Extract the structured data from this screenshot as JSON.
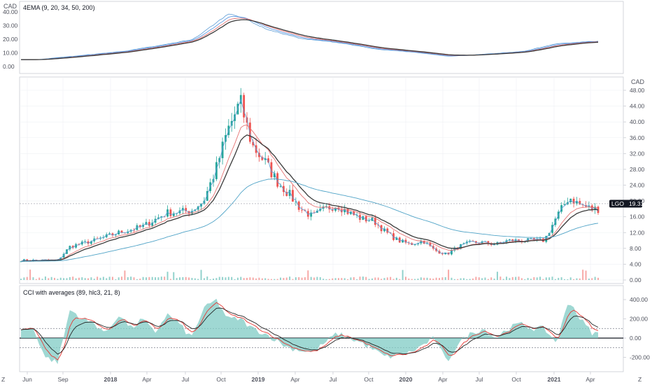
{
  "colors": {
    "up": "#26a69a",
    "down": "#ef5350",
    "ema9": "#5b9bd5",
    "ema20": "#4a90e2",
    "ema34": "#e57373",
    "ema50": "#3a3a3a",
    "ema200": "#4fa3c7",
    "cci_fill": "#7fcbc4",
    "cci_avg1": "#e53935",
    "cci_avg2": "#222222",
    "grid": "#eef0f3",
    "axis": "#c9ccd3",
    "badge_bg": "#131722",
    "badge_fg": "#ffffff"
  },
  "header": {
    "corner_left": "Z",
    "corner_right": "Z"
  },
  "panes": {
    "top": {
      "indicator_label": "4EMA (9, 20, 34, 50, 200)",
      "currency": "CAD",
      "ticks": [
        "40.00",
        "30.00",
        "20.00",
        "10.00",
        "0.00"
      ]
    },
    "main": {
      "currency": "CAD",
      "ticks": [
        "48.00",
        "44.00",
        "40.00",
        "36.00",
        "32.00",
        "28.00",
        "24.00",
        "20.00",
        "16.00",
        "12.00",
        "8.00",
        "4.00",
        "0.00"
      ],
      "symbol": "LGO",
      "last_price": "19.31"
    },
    "cci": {
      "indicator_label": "CCI with averages (89, hlc3, 21, 8)",
      "ticks": [
        "400.00",
        "200.00",
        "0.00",
        "-200.00"
      ]
    }
  },
  "x_axis": [
    "Jun",
    "Sep",
    "2018",
    "Apr",
    "Jul",
    "Oct",
    "2019",
    "Apr",
    "Jul",
    "Oct",
    "2020",
    "Apr",
    "Jul",
    "Oct",
    "2021",
    "Apr"
  ],
  "chart_data": [
    {
      "type": "line",
      "title": "4EMA (9, 20, 34, 50, 200)",
      "x": [
        "2017-06",
        "2017-09",
        "2018-01",
        "2018-04",
        "2018-07",
        "2018-10",
        "2019-01",
        "2019-04",
        "2019-07",
        "2019-10",
        "2020-01",
        "2020-04",
        "2020-07",
        "2020-10",
        "2021-01",
        "2021-04"
      ],
      "series": [
        {
          "values": [
            5,
            7.5,
            11,
            15,
            20,
            40,
            27,
            20,
            17.5,
            12.5,
            10.5,
            7.5,
            9,
            11,
            17,
            18.5
          ]
        }
      ],
      "ylim": [
        0,
        45
      ]
    },
    {
      "type": "line",
      "title": "LGO",
      "x": [
        "2017-06",
        "2017-08",
        "2017-09",
        "2017-11",
        "2018-01",
        "2018-03",
        "2018-05",
        "2018-07",
        "2018-08",
        "2018-09",
        "2018-10",
        "2018-11",
        "2018-12",
        "2019-01",
        "2019-02",
        "2019-03",
        "2019-04",
        "2019-05",
        "2019-06",
        "2019-07",
        "2019-08",
        "2019-09",
        "2019-10",
        "2019-11",
        "2019-12",
        "2020-01",
        "2020-02",
        "2020-03",
        "2020-04",
        "2020-05",
        "2020-06",
        "2020-07",
        "2020-08",
        "2020-09",
        "2020-10",
        "2020-11",
        "2020-12",
        "2021-01",
        "2021-02",
        "2021-03",
        "2021-04"
      ],
      "series": [
        {
          "values": [
            5,
            5,
            8.5,
            10,
            12,
            13.5,
            17,
            17.5,
            20,
            28,
            38,
            45,
            34,
            30,
            25,
            22,
            18,
            16,
            18,
            19,
            17,
            15.5,
            15,
            12,
            10,
            9,
            10,
            7.5,
            6.5,
            8.5,
            9.5,
            9.5,
            9,
            10,
            10,
            10,
            10,
            16,
            21,
            19,
            18
          ]
        }
      ],
      "ylim": [
        0,
        50
      ],
      "last_price": 19.31
    },
    {
      "type": "area",
      "title": "CCI with averages (89, hlc3, 21, 8)",
      "x": [
        "2017-06",
        "2017-07",
        "2017-08",
        "2017-09",
        "2017-10",
        "2017-11",
        "2017-12",
        "2018-01",
        "2018-02",
        "2018-03",
        "2018-04",
        "2018-05",
        "2018-06",
        "2018-07",
        "2018-08",
        "2018-09",
        "2018-10",
        "2018-11",
        "2018-12",
        "2019-01",
        "2019-03",
        "2019-05",
        "2019-07",
        "2019-09",
        "2019-11",
        "2020-01",
        "2020-03",
        "2020-04",
        "2020-05",
        "2020-06",
        "2020-07",
        "2020-08",
        "2020-09",
        "2020-10",
        "2020-11",
        "2020-12",
        "2021-01",
        "2021-02",
        "2021-03",
        "2021-04"
      ],
      "series": [
        {
          "values": [
            100,
            -200,
            -250,
            300,
            200,
            150,
            50,
            250,
            100,
            200,
            50,
            250,
            150,
            0,
            300,
            400,
            200,
            200,
            100,
            50,
            -100,
            -150,
            50,
            -50,
            -200,
            -150,
            0,
            -250,
            -50,
            50,
            100,
            0,
            100,
            150,
            100,
            100,
            -50,
            400,
            200,
            50
          ]
        }
      ],
      "ylim": [
        -300,
        450
      ],
      "reference_lines": [
        100,
        0,
        -100
      ]
    }
  ]
}
